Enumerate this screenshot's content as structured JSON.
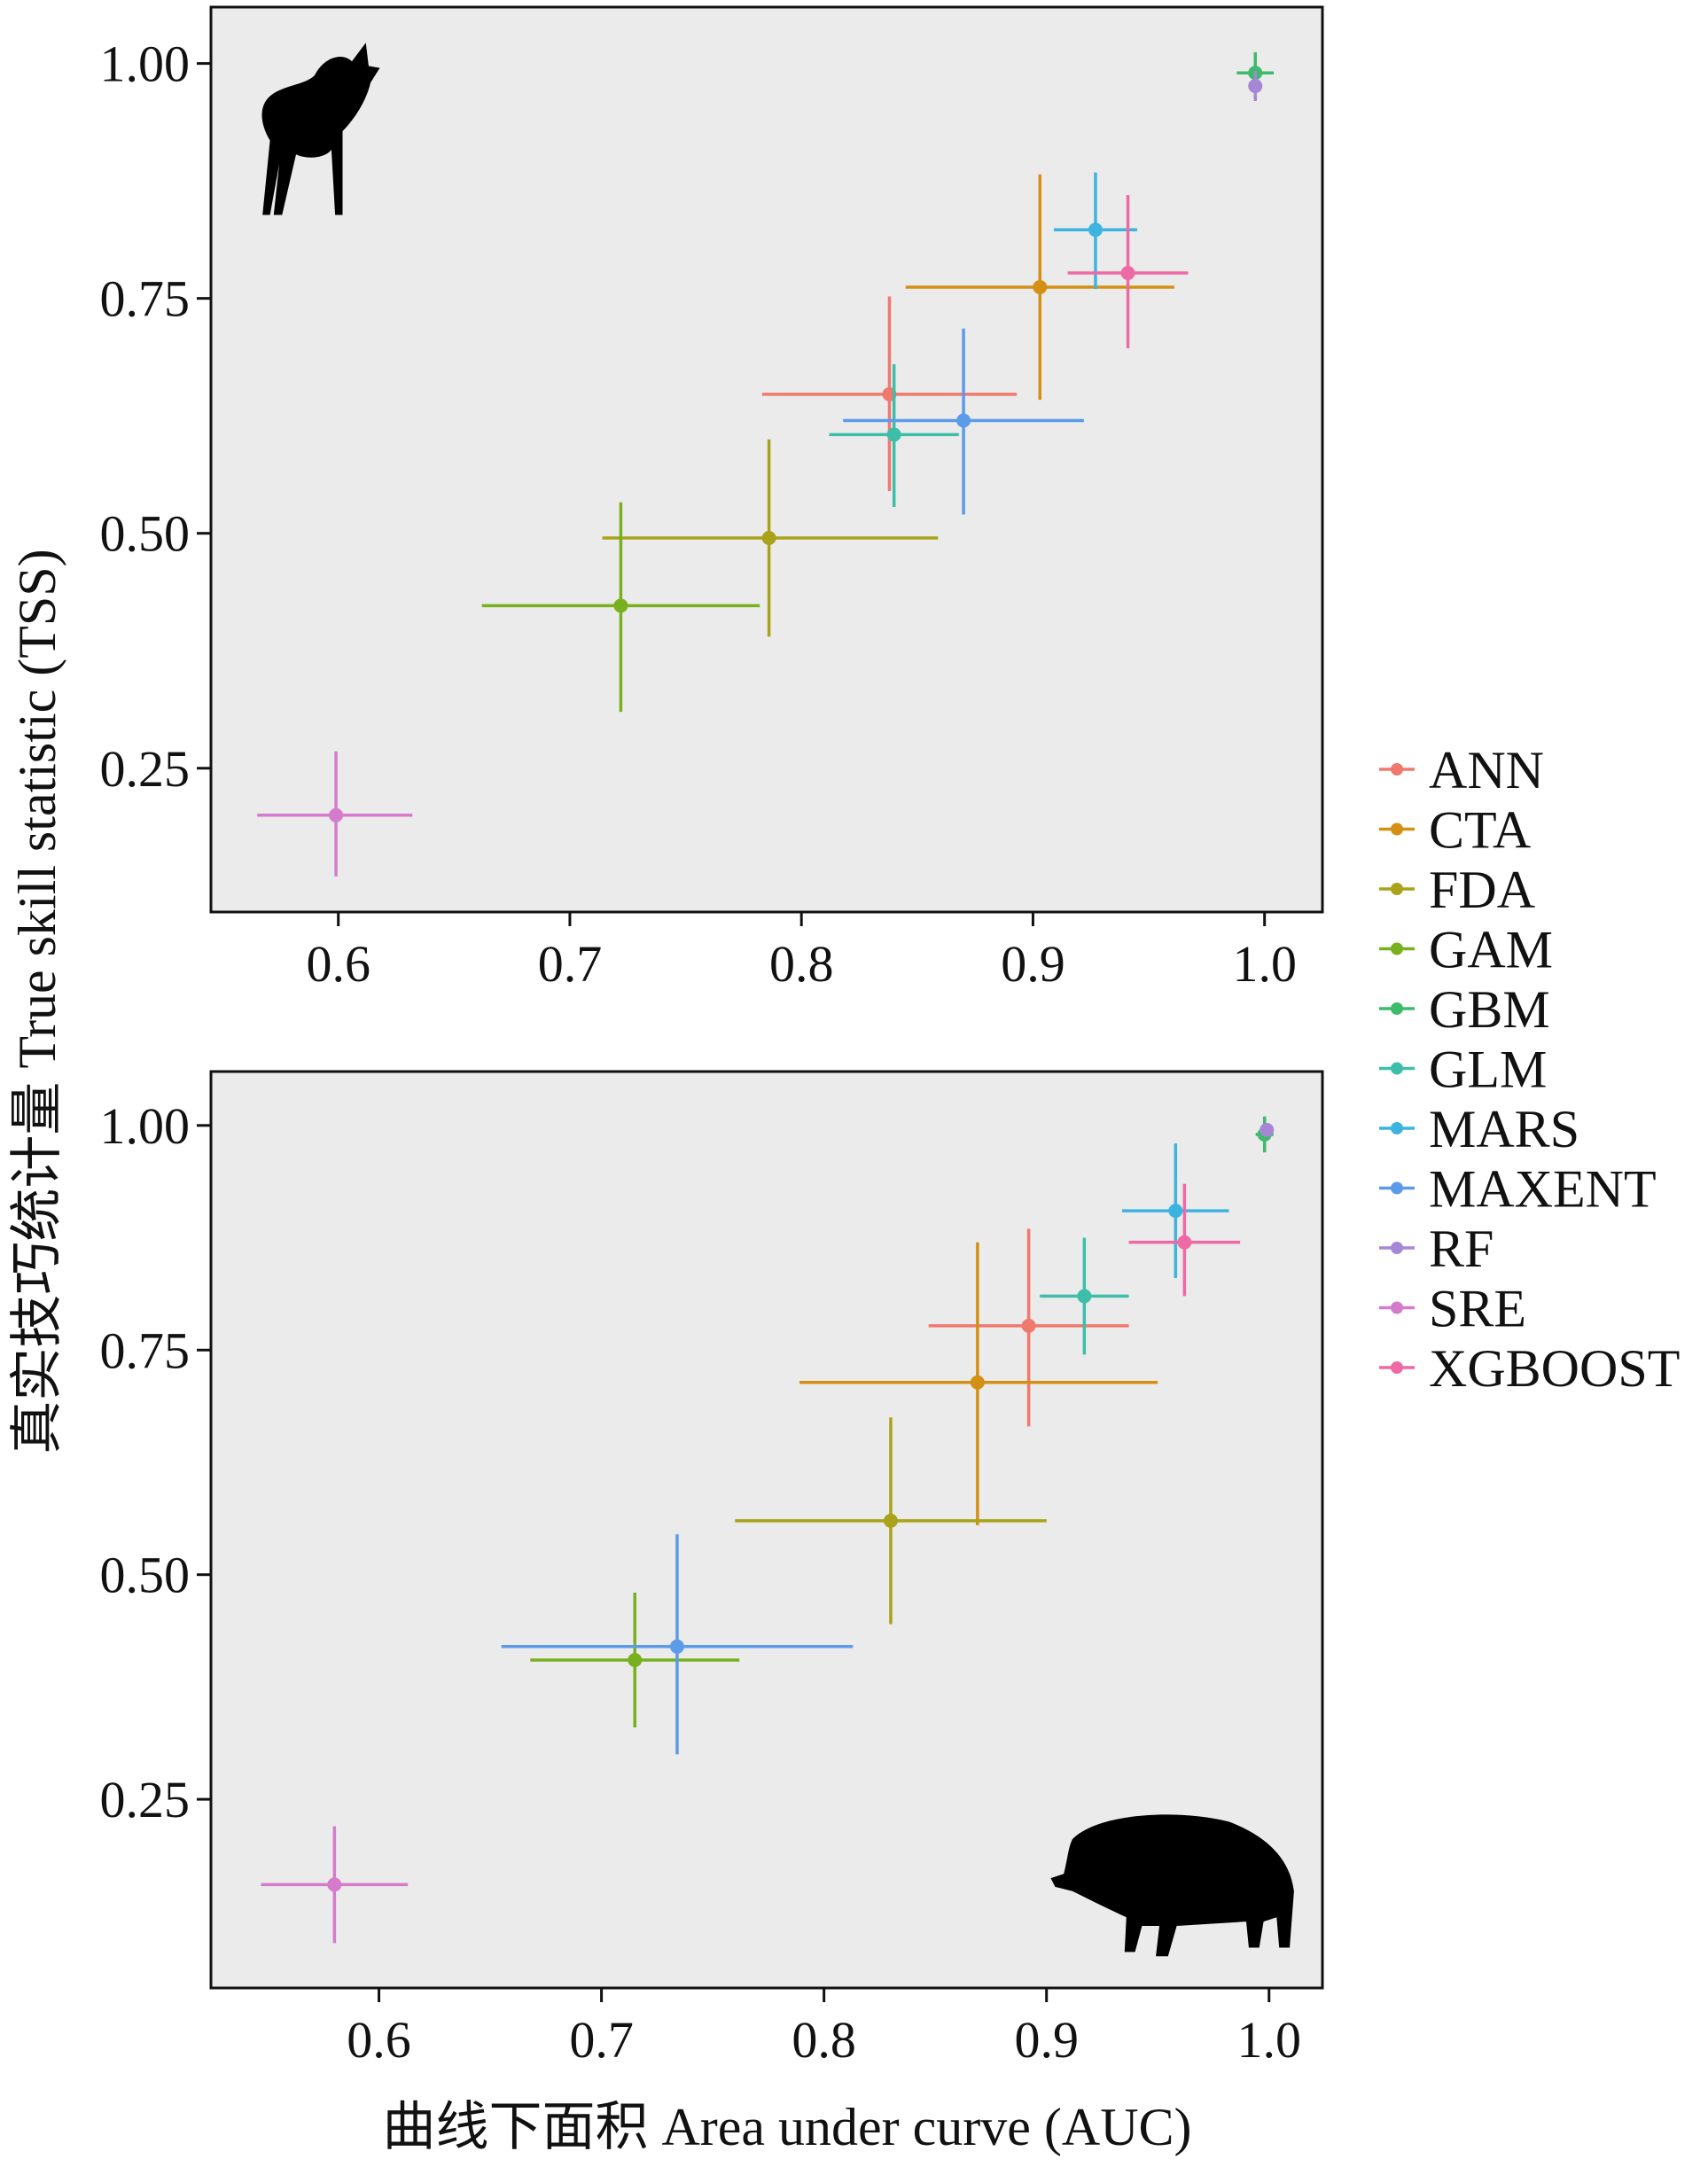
{
  "chart_data": {
    "type": "scatter",
    "xlabel": "曲线下面积 Area under curve (AUC)",
    "ylabel": "真实技巧统计量 True skill statistic (TSS)",
    "legend_placement": "right",
    "series_names": [
      "ANN",
      "CTA",
      "FDA",
      "GAM",
      "GBM",
      "GLM",
      "MARS",
      "MAXENT",
      "RF",
      "SRE",
      "XGBOOST"
    ],
    "colors": {
      "ANN": "#F0796E",
      "CTA": "#D39014",
      "FDA": "#A9A21A",
      "GAM": "#78B01E",
      "GBM": "#3DBA6A",
      "GLM": "#3DBEA9",
      "MARS": "#3DB3E0",
      "MAXENT": "#5C9BEA",
      "RF": "#A886D6",
      "SRE": "#D47CCB",
      "XGBOOST": "#EE6AA4"
    },
    "panels": [
      {
        "animal": "deer",
        "xlim": [
          0.545,
          1.025
        ],
        "ylim": [
          0.097,
          1.06
        ],
        "xticks": [
          "0.6",
          "0.7",
          "0.8",
          "0.9",
          "1.0"
        ],
        "yticks": [
          "0.25",
          "0.50",
          "0.75",
          "1.00"
        ],
        "points": [
          {
            "model": "ANN",
            "auc": 0.838,
            "auc_lo": 0.783,
            "auc_hi": 0.893,
            "tss": 0.648,
            "tss_lo": 0.545,
            "tss_hi": 0.752
          },
          {
            "model": "CTA",
            "auc": 0.903,
            "auc_lo": 0.845,
            "auc_hi": 0.961,
            "tss": 0.762,
            "tss_lo": 0.642,
            "tss_hi": 0.882
          },
          {
            "model": "FDA",
            "auc": 0.786,
            "auc_lo": 0.714,
            "auc_hi": 0.859,
            "tss": 0.495,
            "tss_lo": 0.39,
            "tss_hi": 0.6
          },
          {
            "model": "GAM",
            "auc": 0.722,
            "auc_lo": 0.662,
            "auc_hi": 0.782,
            "tss": 0.423,
            "tss_lo": 0.31,
            "tss_hi": 0.533
          },
          {
            "model": "GBM",
            "auc": 0.996,
            "auc_lo": 0.988,
            "auc_hi": 1.004,
            "tss": 0.99,
            "tss_lo": 0.968,
            "tss_hi": 1.012
          },
          {
            "model": "GLM",
            "auc": 0.84,
            "auc_lo": 0.812,
            "auc_hi": 0.868,
            "tss": 0.605,
            "tss_lo": 0.528,
            "tss_hi": 0.68
          },
          {
            "model": "MARS",
            "auc": 0.927,
            "auc_lo": 0.909,
            "auc_hi": 0.945,
            "tss": 0.823,
            "tss_lo": 0.76,
            "tss_hi": 0.884
          },
          {
            "model": "MAXENT",
            "auc": 0.87,
            "auc_lo": 0.818,
            "auc_hi": 0.922,
            "tss": 0.62,
            "tss_lo": 0.52,
            "tss_hi": 0.718
          },
          {
            "model": "RF",
            "auc": 0.996,
            "auc_lo": 0.994,
            "auc_hi": 0.998,
            "tss": 0.976,
            "tss_lo": 0.96,
            "tss_hi": 0.992
          },
          {
            "model": "SRE",
            "auc": 0.599,
            "auc_lo": 0.565,
            "auc_hi": 0.632,
            "tss": 0.2,
            "tss_lo": 0.135,
            "tss_hi": 0.268
          },
          {
            "model": "XGBOOST",
            "auc": 0.941,
            "auc_lo": 0.915,
            "auc_hi": 0.967,
            "tss": 0.777,
            "tss_lo": 0.697,
            "tss_hi": 0.86
          }
        ]
      },
      {
        "animal": "wild boar",
        "xlim": [
          0.5245,
          1.024
        ],
        "ylim": [
          0.04,
          1.06
        ],
        "xticks": [
          "0.6",
          "0.7",
          "0.8",
          "0.9",
          "1.0"
        ],
        "yticks": [
          "0.25",
          "0.50",
          "0.75",
          "1.00"
        ],
        "points": [
          {
            "model": "ANN",
            "auc": 0.892,
            "auc_lo": 0.847,
            "auc_hi": 0.937,
            "tss": 0.777,
            "tss_lo": 0.665,
            "tss_hi": 0.885
          },
          {
            "model": "CTA",
            "auc": 0.869,
            "auc_lo": 0.789,
            "auc_hi": 0.95,
            "tss": 0.714,
            "tss_lo": 0.555,
            "tss_hi": 0.87
          },
          {
            "model": "FDA",
            "auc": 0.83,
            "auc_lo": 0.76,
            "auc_hi": 0.9,
            "tss": 0.56,
            "tss_lo": 0.445,
            "tss_hi": 0.675
          },
          {
            "model": "GAM",
            "auc": 0.715,
            "auc_lo": 0.668,
            "auc_hi": 0.762,
            "tss": 0.405,
            "tss_lo": 0.33,
            "tss_hi": 0.48
          },
          {
            "model": "GBM",
            "auc": 0.998,
            "auc_lo": 0.994,
            "auc_hi": 1.002,
            "tss": 0.99,
            "tss_lo": 0.97,
            "tss_hi": 1.01
          },
          {
            "model": "GLM",
            "auc": 0.917,
            "auc_lo": 0.897,
            "auc_hi": 0.937,
            "tss": 0.81,
            "tss_lo": 0.745,
            "tss_hi": 0.875
          },
          {
            "model": "MARS",
            "auc": 0.958,
            "auc_lo": 0.934,
            "auc_hi": 0.982,
            "tss": 0.905,
            "tss_lo": 0.83,
            "tss_hi": 0.98
          },
          {
            "model": "MAXENT",
            "auc": 0.734,
            "auc_lo": 0.655,
            "auc_hi": 0.813,
            "tss": 0.42,
            "tss_lo": 0.3,
            "tss_hi": 0.545
          },
          {
            "model": "RF",
            "auc": 0.999,
            "auc_lo": 0.998,
            "auc_hi": 1.0,
            "tss": 0.995,
            "tss_lo": 0.99,
            "tss_hi": 1.0
          },
          {
            "model": "SRE",
            "auc": 0.58,
            "auc_lo": 0.547,
            "auc_hi": 0.613,
            "tss": 0.155,
            "tss_lo": 0.09,
            "tss_hi": 0.22
          },
          {
            "model": "XGBOOST",
            "auc": 0.962,
            "auc_lo": 0.937,
            "auc_hi": 0.987,
            "tss": 0.87,
            "tss_lo": 0.81,
            "tss_hi": 0.935
          }
        ]
      }
    ]
  }
}
